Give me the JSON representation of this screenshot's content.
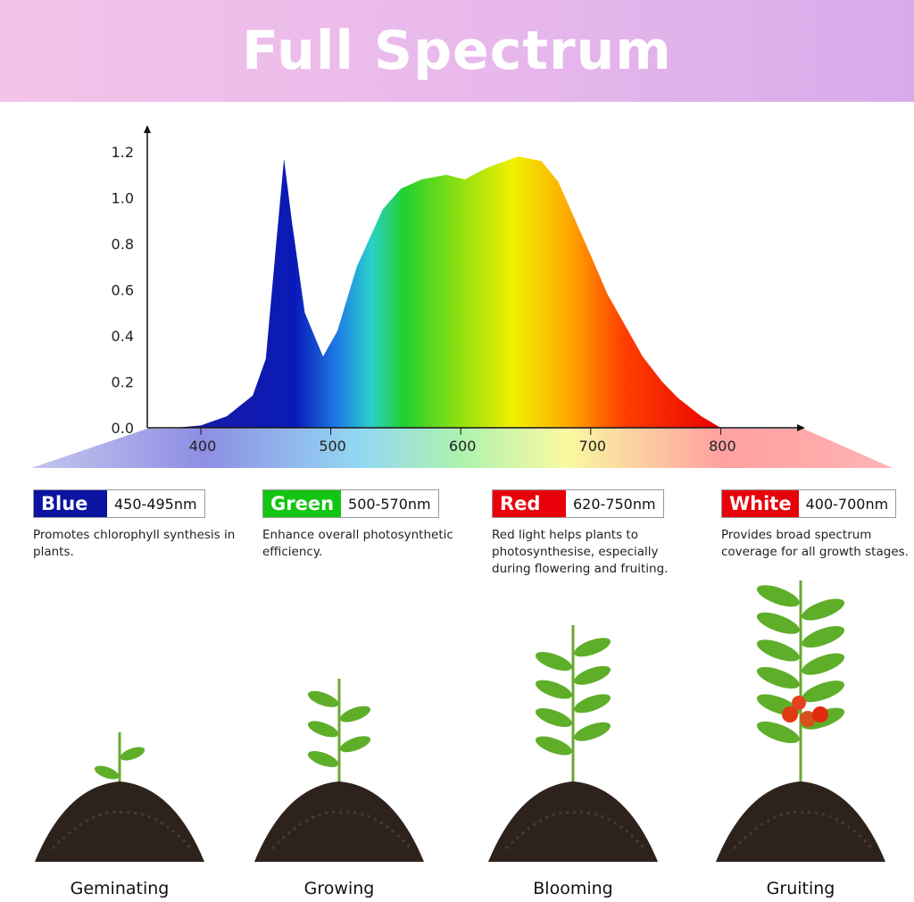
{
  "title": "Full Spectrum",
  "chart_data": {
    "type": "area",
    "x": [
      380,
      400,
      420,
      440,
      450,
      458,
      464,
      470,
      480,
      494,
      505,
      520,
      540,
      554,
      570,
      589,
      603,
      620,
      644,
      662,
      675,
      686,
      700,
      713,
      727,
      740,
      755,
      767,
      785,
      800
    ],
    "y": [
      0,
      0.01,
      0.05,
      0.14,
      0.3,
      0.8,
      1.17,
      0.9,
      0.5,
      0.31,
      0.42,
      0.7,
      0.95,
      1.04,
      1.08,
      1.1,
      1.08,
      1.13,
      1.18,
      1.16,
      1.07,
      0.93,
      0.75,
      0.58,
      0.44,
      0.31,
      0.2,
      0.13,
      0.05,
      0
    ],
    "xticks": [
      400,
      500,
      600,
      700,
      800
    ],
    "yticks": [
      "0.0",
      "0.2",
      "0.4",
      "0.6",
      "0.8",
      "1.0",
      "1.2"
    ],
    "xlim": [
      359,
      864
    ],
    "ylim": [
      0,
      1.25
    ],
    "fill": "wavelength-color gradient",
    "grid": false
  },
  "bands": [
    {
      "name": "Blue",
      "range": "450-495nm",
      "color": "#0a14a0",
      "desc": "Promotes chlorophyll synthesis in plants."
    },
    {
      "name": "Green",
      "range": "500-570nm",
      "color": "#12c512",
      "desc": "Enhance overall photosynthetic efficiency."
    },
    {
      "name": "Red",
      "range": "620-750nm",
      "color": "#e8000a",
      "desc": "Red light helps plants to photosynthesise, especially during flowering and fruiting."
    },
    {
      "name": "White",
      "range": "400-700nm",
      "color": "#e8000a",
      "desc": "Provides broad spectrum coverage for all growth stages."
    }
  ],
  "stages": [
    "Geminating",
    "Growing",
    "Blooming",
    "Gruiting"
  ]
}
